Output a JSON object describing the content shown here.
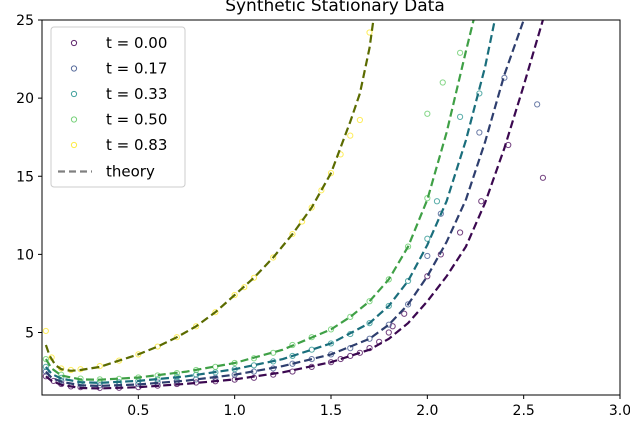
{
  "chart_data": {
    "type": "scatter",
    "title": "Synthetic Stationary Data",
    "xlabel": "",
    "ylabel": "",
    "xlim": [
      0.0,
      3.0
    ],
    "ylim": [
      1.0,
      25.0
    ],
    "x_ticks": [
      "0.5",
      "1.0",
      "1.5",
      "2.0",
      "2.5",
      "3.0"
    ],
    "y_ticks": [
      "5",
      "10",
      "15",
      "20",
      "25"
    ],
    "grid": false,
    "legend_position": "top-left",
    "series": [
      {
        "name": "t = 0.00",
        "color": "#440154",
        "theory_color": "#3b0850",
        "theory": [
          [
            0.02,
            2.2
          ],
          [
            0.05,
            1.9
          ],
          [
            0.1,
            1.65
          ],
          [
            0.2,
            1.45
          ],
          [
            0.3,
            1.42
          ],
          [
            0.5,
            1.5
          ],
          [
            0.75,
            1.72
          ],
          [
            1.0,
            2.0
          ],
          [
            1.25,
            2.45
          ],
          [
            1.5,
            3.1
          ],
          [
            1.7,
            3.9
          ],
          [
            1.8,
            4.6
          ],
          [
            1.9,
            5.6
          ],
          [
            2.0,
            7.0
          ],
          [
            2.1,
            8.6
          ],
          [
            2.2,
            10.5
          ],
          [
            2.3,
            13.3
          ],
          [
            2.4,
            16.8
          ],
          [
            2.5,
            20.8
          ],
          [
            2.6,
            25.0
          ]
        ],
        "points": [
          [
            0.02,
            2.2
          ],
          [
            0.06,
            1.9
          ],
          [
            0.1,
            1.7
          ],
          [
            0.15,
            1.55
          ],
          [
            0.2,
            1.5
          ],
          [
            0.3,
            1.45
          ],
          [
            0.4,
            1.46
          ],
          [
            0.5,
            1.5
          ],
          [
            0.6,
            1.6
          ],
          [
            0.7,
            1.7
          ],
          [
            0.8,
            1.8
          ],
          [
            0.9,
            1.88
          ],
          [
            1.0,
            1.98
          ],
          [
            1.1,
            2.1
          ],
          [
            1.2,
            2.3
          ],
          [
            1.3,
            2.5
          ],
          [
            1.4,
            2.8
          ],
          [
            1.5,
            3.1
          ],
          [
            1.55,
            3.3
          ],
          [
            1.6,
            3.5
          ],
          [
            1.65,
            3.7
          ],
          [
            1.7,
            4.0
          ],
          [
            1.75,
            4.4
          ],
          [
            1.8,
            5.0
          ],
          [
            1.82,
            5.4
          ],
          [
            1.88,
            6.2
          ],
          [
            2.0,
            8.6
          ],
          [
            2.07,
            10.0
          ],
          [
            2.17,
            11.4
          ],
          [
            2.28,
            13.4
          ],
          [
            2.42,
            17.0
          ],
          [
            2.6,
            14.9
          ]
        ]
      },
      {
        "name": "t = 0.17",
        "color": "#3b528b",
        "theory_color": "#2e3e6e",
        "theory": [
          [
            0.02,
            2.5
          ],
          [
            0.05,
            2.1
          ],
          [
            0.1,
            1.85
          ],
          [
            0.2,
            1.62
          ],
          [
            0.3,
            1.58
          ],
          [
            0.5,
            1.67
          ],
          [
            0.75,
            1.92
          ],
          [
            1.0,
            2.3
          ],
          [
            1.25,
            2.85
          ],
          [
            1.5,
            3.6
          ],
          [
            1.7,
            4.6
          ],
          [
            1.8,
            5.5
          ],
          [
            1.9,
            6.8
          ],
          [
            2.0,
            8.6
          ],
          [
            2.1,
            10.8
          ],
          [
            2.2,
            13.5
          ],
          [
            2.3,
            17.2
          ],
          [
            2.4,
            21.5
          ],
          [
            2.5,
            25.0
          ]
        ],
        "points": [
          [
            0.02,
            2.5
          ],
          [
            0.1,
            1.9
          ],
          [
            0.2,
            1.7
          ],
          [
            0.3,
            1.62
          ],
          [
            0.4,
            1.63
          ],
          [
            0.5,
            1.7
          ],
          [
            0.6,
            1.8
          ],
          [
            0.7,
            1.9
          ],
          [
            0.8,
            2.0
          ],
          [
            0.9,
            2.1
          ],
          [
            1.0,
            2.3
          ],
          [
            1.1,
            2.5
          ],
          [
            1.2,
            2.7
          ],
          [
            1.3,
            3.0
          ],
          [
            1.4,
            3.3
          ],
          [
            1.5,
            3.6
          ],
          [
            1.6,
            4.0
          ],
          [
            1.7,
            4.6
          ],
          [
            1.8,
            5.5
          ],
          [
            1.9,
            6.8
          ],
          [
            2.0,
            9.9
          ],
          [
            2.07,
            12.6
          ],
          [
            2.27,
            17.8
          ],
          [
            2.4,
            21.3
          ],
          [
            2.57,
            19.6
          ]
        ]
      },
      {
        "name": "t = 0.33",
        "color": "#21918c",
        "theory_color": "#1a6e7c",
        "theory": [
          [
            0.02,
            2.8
          ],
          [
            0.05,
            2.35
          ],
          [
            0.1,
            2.05
          ],
          [
            0.2,
            1.82
          ],
          [
            0.3,
            1.78
          ],
          [
            0.5,
            1.9
          ],
          [
            0.75,
            2.2
          ],
          [
            1.0,
            2.65
          ],
          [
            1.25,
            3.3
          ],
          [
            1.5,
            4.3
          ],
          [
            1.7,
            5.6
          ],
          [
            1.8,
            6.7
          ],
          [
            1.9,
            8.3
          ],
          [
            2.0,
            10.6
          ],
          [
            2.1,
            13.4
          ],
          [
            2.2,
            17.3
          ],
          [
            2.3,
            22.0
          ],
          [
            2.35,
            25.0
          ]
        ],
        "points": [
          [
            0.02,
            2.8
          ],
          [
            0.1,
            2.1
          ],
          [
            0.2,
            1.85
          ],
          [
            0.3,
            1.8
          ],
          [
            0.4,
            1.82
          ],
          [
            0.5,
            1.9
          ],
          [
            0.6,
            2.0
          ],
          [
            0.7,
            2.15
          ],
          [
            0.8,
            2.3
          ],
          [
            0.9,
            2.45
          ],
          [
            1.0,
            2.65
          ],
          [
            1.1,
            2.9
          ],
          [
            1.2,
            3.15
          ],
          [
            1.3,
            3.5
          ],
          [
            1.4,
            3.9
          ],
          [
            1.5,
            4.3
          ],
          [
            1.6,
            4.9
          ],
          [
            1.7,
            5.6
          ],
          [
            1.8,
            6.7
          ],
          [
            1.9,
            8.3
          ],
          [
            2.0,
            11.0
          ],
          [
            2.05,
            13.4
          ],
          [
            2.17,
            18.8
          ],
          [
            2.27,
            20.3
          ]
        ]
      },
      {
        "name": "t = 0.50",
        "color": "#5ec962",
        "theory_color": "#3fa046",
        "theory": [
          [
            0.02,
            3.3
          ],
          [
            0.05,
            2.7
          ],
          [
            0.1,
            2.25
          ],
          [
            0.2,
            2.0
          ],
          [
            0.3,
            1.98
          ],
          [
            0.5,
            2.12
          ],
          [
            0.75,
            2.5
          ],
          [
            1.0,
            3.05
          ],
          [
            1.25,
            3.9
          ],
          [
            1.5,
            5.2
          ],
          [
            1.6,
            6.0
          ],
          [
            1.7,
            7.0
          ],
          [
            1.8,
            8.4
          ],
          [
            1.9,
            10.5
          ],
          [
            2.0,
            13.5
          ],
          [
            2.1,
            17.8
          ],
          [
            2.2,
            23.0
          ],
          [
            2.24,
            25.0
          ]
        ],
        "points": [
          [
            0.02,
            3.3
          ],
          [
            0.1,
            2.3
          ],
          [
            0.2,
            2.05
          ],
          [
            0.3,
            2.0
          ],
          [
            0.4,
            2.03
          ],
          [
            0.5,
            2.12
          ],
          [
            0.6,
            2.25
          ],
          [
            0.7,
            2.4
          ],
          [
            0.8,
            2.6
          ],
          [
            0.9,
            2.8
          ],
          [
            1.0,
            3.05
          ],
          [
            1.1,
            3.35
          ],
          [
            1.2,
            3.7
          ],
          [
            1.3,
            4.2
          ],
          [
            1.4,
            4.7
          ],
          [
            1.5,
            5.2
          ],
          [
            1.6,
            6.0
          ],
          [
            1.7,
            7.0
          ],
          [
            1.8,
            8.4
          ],
          [
            1.9,
            10.5
          ],
          [
            2.0,
            13.6
          ],
          [
            2.0,
            19.0
          ],
          [
            2.08,
            21.0
          ],
          [
            2.17,
            22.9
          ]
        ]
      },
      {
        "name": "t = 0.83",
        "color": "#fde725",
        "theory_color": "#5b6b00",
        "theory": [
          [
            0.02,
            4.2
          ],
          [
            0.04,
            3.5
          ],
          [
            0.07,
            2.9
          ],
          [
            0.1,
            2.65
          ],
          [
            0.15,
            2.55
          ],
          [
            0.2,
            2.6
          ],
          [
            0.3,
            2.8
          ],
          [
            0.4,
            3.2
          ],
          [
            0.5,
            3.6
          ],
          [
            0.6,
            4.1
          ],
          [
            0.7,
            4.7
          ],
          [
            0.8,
            5.4
          ],
          [
            0.9,
            6.3
          ],
          [
            1.0,
            7.4
          ],
          [
            1.1,
            8.5
          ],
          [
            1.2,
            9.8
          ],
          [
            1.3,
            11.3
          ],
          [
            1.4,
            13.0
          ],
          [
            1.5,
            15.2
          ],
          [
            1.6,
            18.5
          ],
          [
            1.65,
            20.3
          ],
          [
            1.7,
            23.2
          ],
          [
            1.72,
            25.0
          ]
        ],
        "points": [
          [
            0.02,
            5.1
          ],
          [
            0.05,
            3.4
          ],
          [
            0.1,
            2.7
          ],
          [
            0.15,
            2.6
          ],
          [
            0.2,
            2.65
          ],
          [
            0.3,
            2.85
          ],
          [
            0.4,
            3.2
          ],
          [
            0.5,
            3.6
          ],
          [
            0.6,
            4.1
          ],
          [
            0.7,
            4.7
          ],
          [
            0.8,
            5.4
          ],
          [
            0.9,
            6.3
          ],
          [
            1.0,
            7.4
          ],
          [
            1.05,
            7.9
          ],
          [
            1.1,
            8.5
          ],
          [
            1.2,
            9.8
          ],
          [
            1.3,
            11.3
          ],
          [
            1.35,
            12.1
          ],
          [
            1.4,
            13.0
          ],
          [
            1.45,
            14.1
          ],
          [
            1.5,
            15.2
          ],
          [
            1.55,
            16.4
          ],
          [
            1.6,
            17.6
          ],
          [
            1.65,
            18.6
          ],
          [
            1.7,
            24.2
          ]
        ]
      }
    ],
    "theory_legend": "theory"
  }
}
